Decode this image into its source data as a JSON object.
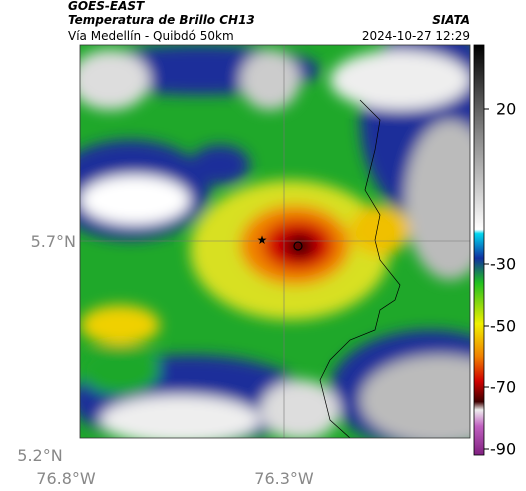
{
  "header": {
    "title": "GOES-EAST",
    "subtitle": "Temperatura de Brillo CH13",
    "route": "Vía Medellín - Quibdó 50km",
    "source": "SIATA",
    "datetime": "2024-10-27 12:29"
  },
  "axes": {
    "y_labels": [
      "5.7°N",
      "5.2°N"
    ],
    "x_labels": [
      "76.8°W",
      "76.3°W"
    ]
  },
  "colorbar": {
    "ticks": [
      20,
      -30,
      -50,
      -70,
      -90
    ]
  }
}
